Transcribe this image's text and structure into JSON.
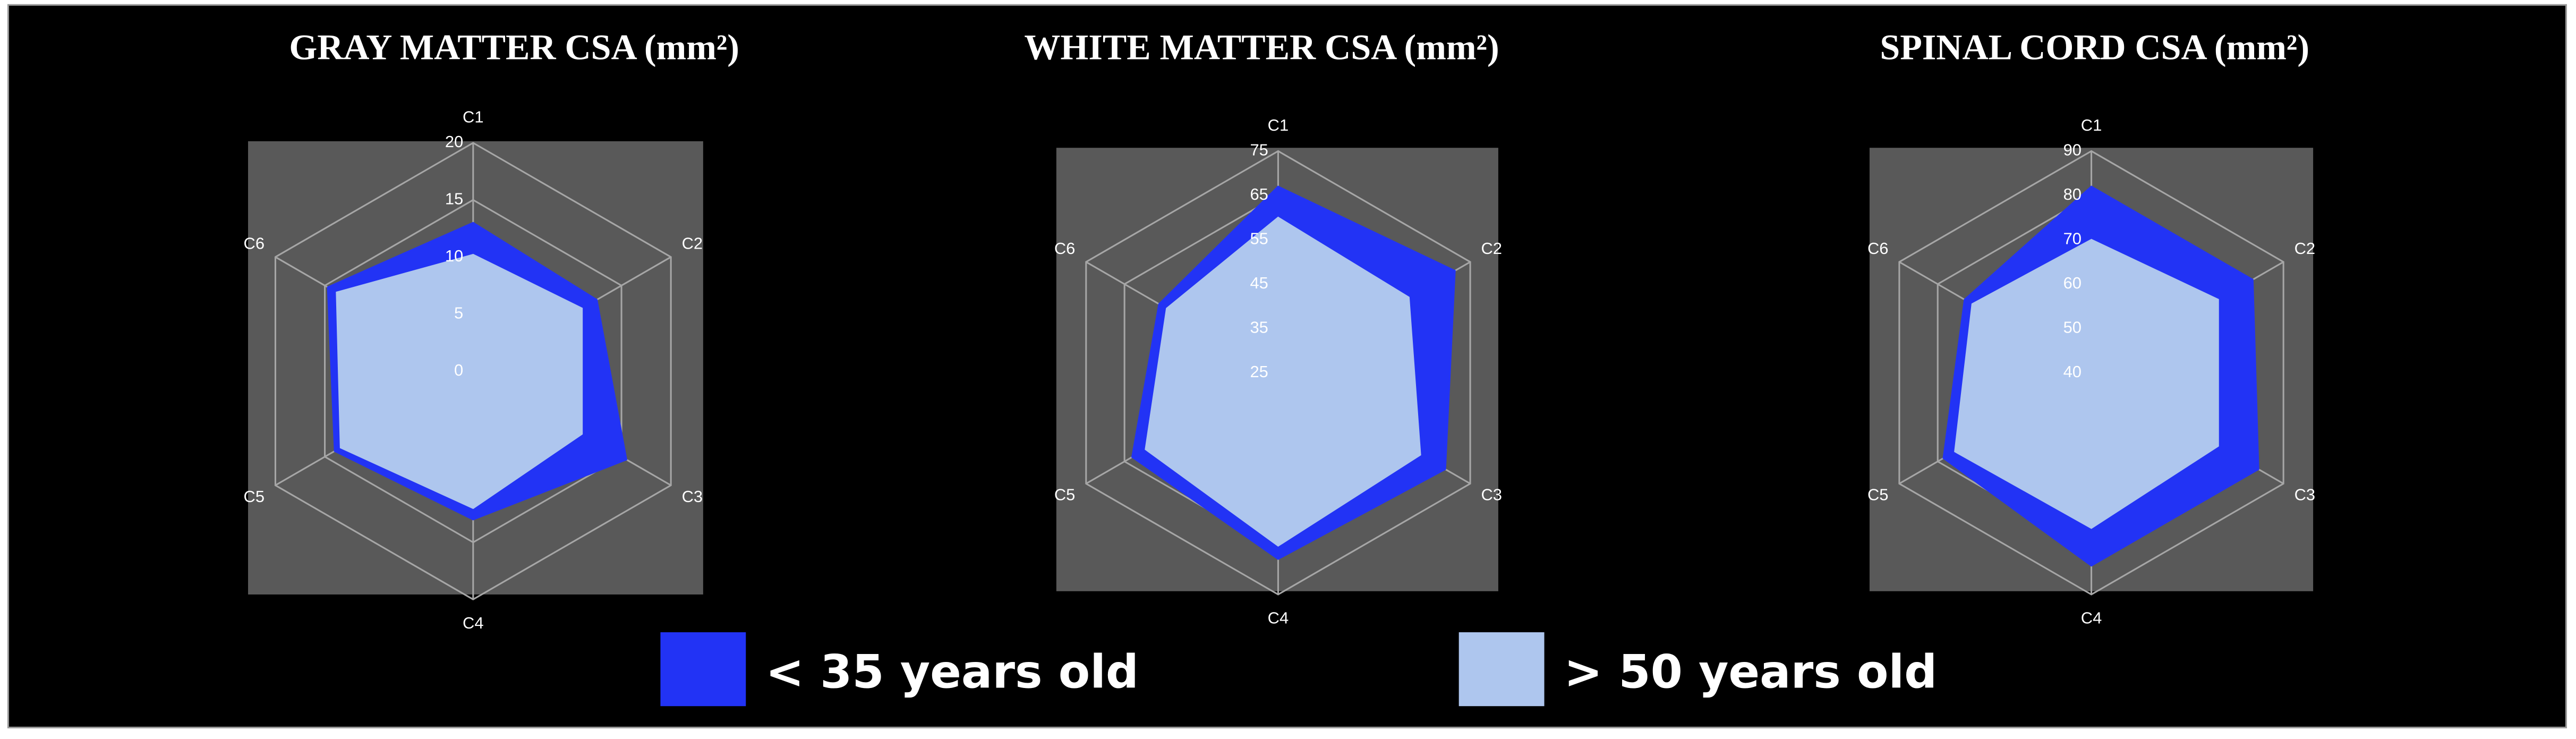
{
  "chart_data": [
    {
      "type": "radar",
      "title": "GRAY MATTER CSA (mm²)",
      "categories": [
        "C1",
        "C2",
        "C3",
        "C4",
        "C5",
        "C6"
      ],
      "ylim": [
        0,
        20
      ],
      "yticks": [
        0,
        5,
        10,
        15,
        20
      ],
      "grid": true,
      "series": [
        {
          "name": "< 35 years old",
          "color": "#2233f5",
          "values": [
            13,
            12.5,
            15.5,
            13,
            14,
            14.7
          ]
        },
        {
          "name": "> 50 years old",
          "color": "#aec6ee",
          "values": [
            10.2,
            11,
            11,
            12,
            13.4,
            13.8
          ]
        }
      ]
    },
    {
      "type": "radar",
      "title": "WHITE MATTER CSA (mm²)",
      "categories": [
        "C1",
        "C2",
        "C3",
        "C4",
        "C5",
        "C6"
      ],
      "ylim": [
        25,
        75
      ],
      "yticks": [
        25,
        35,
        45,
        55,
        65,
        75
      ],
      "grid": true,
      "series": [
        {
          "name": "< 35 years old",
          "color": "#2233f5",
          "values": [
            67,
            71,
            68.5,
            67,
            63,
            56
          ]
        },
        {
          "name": "> 50 years old",
          "color": "#aec6ee",
          "values": [
            60,
            59,
            62,
            64,
            59.5,
            54
          ]
        }
      ]
    },
    {
      "type": "radar",
      "title": "SPINAL CORD CSA (mm²)",
      "categories": [
        "C1",
        "C2",
        "C3",
        "C4",
        "C5",
        "C6"
      ],
      "ylim": [
        40,
        90
      ],
      "yticks": [
        40,
        50,
        60,
        70,
        80,
        90
      ],
      "grid": true,
      "series": [
        {
          "name": "< 35 years old",
          "color": "#2233f5",
          "values": [
            82,
            82,
            83.5,
            83.5,
            78.5,
            73
          ]
        },
        {
          "name": "> 50 years old",
          "color": "#aec6ee",
          "values": [
            70,
            73,
            73,
            75,
            75.5,
            71
          ]
        }
      ]
    }
  ]
}
